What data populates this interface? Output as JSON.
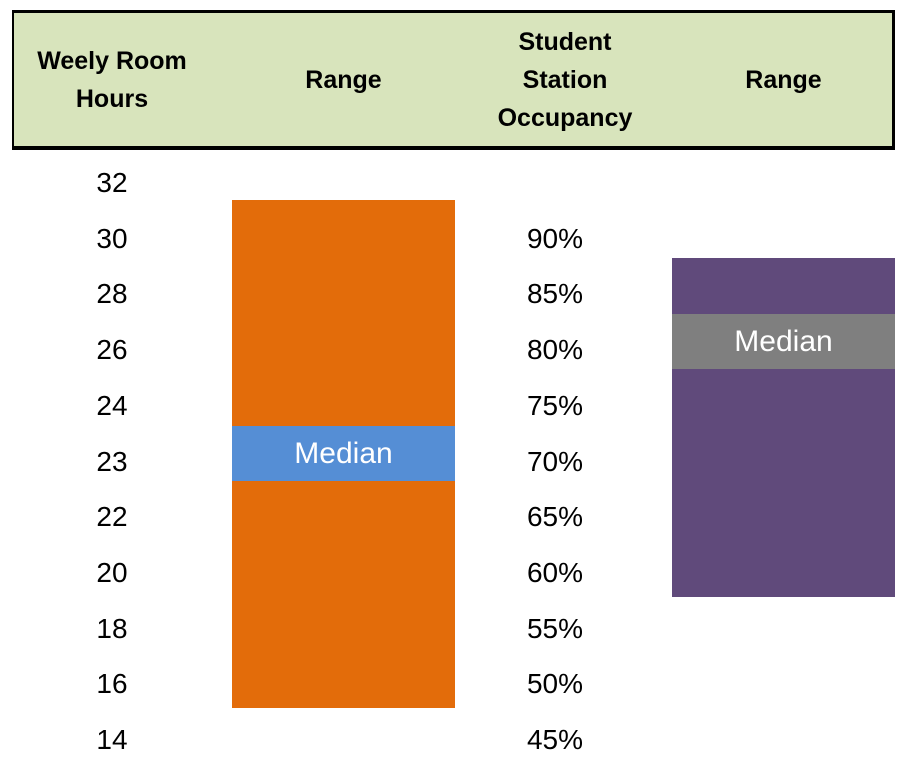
{
  "header": {
    "columns": [
      "Weely Room Hours",
      "Range",
      "Student Station Occupancy",
      "Range"
    ]
  },
  "table": {
    "hours": [
      "32",
      "30",
      "28",
      "26",
      "24",
      "23",
      "22",
      "20",
      "18",
      "16",
      "14"
    ],
    "occupancy": [
      "90%",
      "85%",
      "80%",
      "75%",
      "70%",
      "65%",
      "60%",
      "55%",
      "50%",
      "45%"
    ]
  },
  "hours_range": {
    "label": "Median"
  },
  "occupancy_range": {
    "label": "Median"
  }
}
